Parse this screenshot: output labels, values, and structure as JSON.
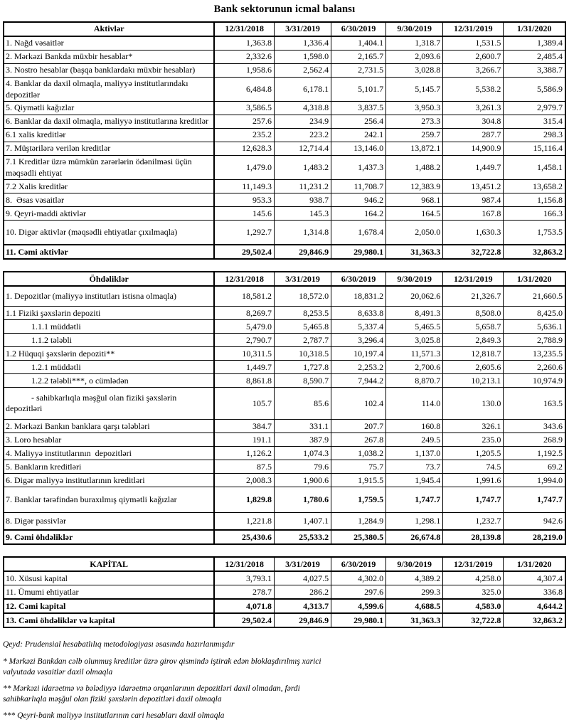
{
  "title": "Bank sektorunun icmal balansı",
  "columns": [
    "12/31/2018",
    "3/31/2019",
    "6/30/2019",
    "9/30/2019",
    "12/31/2019",
    "1/31/2020"
  ],
  "tables": [
    {
      "header": "Aktivlər",
      "rows": [
        {
          "label": "1. Nağd vəsaitlər",
          "values": [
            "1,363.8",
            "1,336.4",
            "1,404.1",
            "1,318.7",
            "1,531.5",
            "1,389.4"
          ]
        },
        {
          "label": "2. Mərkəzi Bankda müxbir hesablar*",
          "values": [
            "2,332.6",
            "1,598.0",
            "2,165.7",
            "2,093.6",
            "2,600.7",
            "2,485.4"
          ]
        },
        {
          "label": "3. Nostro hesablar (başqa banklardakı müxbir hesablar)",
          "values": [
            "1,958.6",
            "2,562.4",
            "2,731.5",
            "3,028.8",
            "3,266.7",
            "3,388.7"
          ]
        },
        {
          "label": "4. Banklar da daxil olmaqla, maliyyə institutlarındakı depozitlər",
          "values": [
            "6,484.8",
            "6,178.1",
            "5,101.7",
            "5,145.7",
            "5,538.2",
            "5,586.9"
          ]
        },
        {
          "label": "5. Qiymətli kağızlar",
          "values": [
            "3,586.5",
            "4,318.8",
            "3,837.5",
            "3,950.3",
            "3,261.3",
            "2,979.7"
          ]
        },
        {
          "label": "6. Banklar da daxil olmaqla, maliyyə institutlarına kreditlər",
          "values": [
            "257.6",
            "234.9",
            "256.4",
            "273.3",
            "304.8",
            "315.4"
          ]
        },
        {
          "label": "6.1 xalis kreditlər",
          "values": [
            "235.2",
            "223.2",
            "242.1",
            "259.7",
            "287.7",
            "298.3"
          ]
        },
        {
          "label": "7. Müştərilərə verilən kreditlər",
          "values": [
            "12,628.3",
            "12,714.4",
            "13,146.0",
            "13,872.1",
            "14,900.9",
            "15,116.4"
          ]
        },
        {
          "label": "7.1 Kreditlər üzrə mümkün zərərlərin ödənilməsi üçün məqsədli ehtiyat",
          "values": [
            "1,479.0",
            "1,483.2",
            "1,437.3",
            "1,488.2",
            "1,449.7",
            "1,458.1"
          ]
        },
        {
          "label": "7.2 Xalis kreditlər",
          "values": [
            "11,149.3",
            "11,231.2",
            "11,708.7",
            "12,383.9",
            "13,451.2",
            "13,658.2"
          ]
        },
        {
          "label": "8.  Əsas vəsaitlər",
          "values": [
            "953.3",
            "938.7",
            "946.2",
            "968.1",
            "987.4",
            "1,156.8"
          ]
        },
        {
          "label": "9. Qeyri-maddi aktivlər",
          "values": [
            "145.6",
            "145.3",
            "164.2",
            "164.5",
            "167.8",
            "166.3"
          ]
        },
        {
          "label": "10. Digər aktivlər (məqsədli ehtiyatlar çıxılmaqla)",
          "values": [
            "1,292.7",
            "1,314.8",
            "1,678.4",
            "2,050.0",
            "1,630.3",
            "1,753.5"
          ],
          "tall": 31
        },
        {
          "label": "11. Cəmi aktivlər",
          "values": [
            "29,502.4",
            "29,846.9",
            "29,980.1",
            "31,363.3",
            "32,722.8",
            "32,863.2"
          ],
          "bold": true,
          "total": true
        }
      ]
    },
    {
      "header": "Öhdəliklər",
      "rows": [
        {
          "label": "1. Depozitlər (maliyyə institutları istisna olmaqla)",
          "values": [
            "18,581.2",
            "18,572.0",
            "18,831.2",
            "20,062.6",
            "21,326.7",
            "21,660.5"
          ],
          "tall": 25
        },
        {
          "label": "1.1 Fiziki şəxslərin depoziti",
          "values": [
            "8,269.7",
            "8,253.5",
            "8,633.8",
            "8,491.3",
            "8,508.0",
            "8,425.0"
          ]
        },
        {
          "label": "1.1.1 müddətli",
          "indent": 1,
          "values": [
            "5,479.0",
            "5,465.8",
            "5,337.4",
            "5,465.5",
            "5,658.7",
            "5,636.1"
          ]
        },
        {
          "label": "1.1.2 tələbli",
          "indent": 1,
          "values": [
            "2,790.7",
            "2,787.7",
            "3,296.4",
            "3,025.8",
            "2,849.3",
            "2,788.9"
          ]
        },
        {
          "label": "1.2 Hüquqi şəxslərin depoziti**",
          "values": [
            "10,311.5",
            "10,318.5",
            "10,197.4",
            "11,571.3",
            "12,818.7",
            "13,235.5"
          ]
        },
        {
          "label": "1.2.1 müddətli",
          "indent": 1,
          "values": [
            "1,449.7",
            "1,727.8",
            "2,253.2",
            "2,700.6",
            "2,605.6",
            "2,260.6"
          ]
        },
        {
          "label": "1.2.2 tələbli***, o cümlədən",
          "indent": 1,
          "values": [
            "8,861.8",
            "8,590.7",
            "7,944.2",
            "8,870.7",
            "10,213.1",
            "10,974.9"
          ]
        },
        {
          "label": "- sahibkarlıqla məşğul olan fiziki şəxslərin depozitləri",
          "indent": 1,
          "values": [
            "105.7",
            "85.6",
            "102.4",
            "114.0",
            "130.0",
            "163.5"
          ],
          "tall": 42
        },
        {
          "label": "2. Mərkəzi Bankın banklara qarşı tələbləri",
          "values": [
            "384.7",
            "331.1",
            "207.7",
            "160.8",
            "326.1",
            "343.6"
          ]
        },
        {
          "label": "3. Loro hesablar",
          "values": [
            "191.1",
            "387.9",
            "267.8",
            "249.5",
            "235.0",
            "268.9"
          ]
        },
        {
          "label": "4. Maliyyə institutlarının  depozitləri",
          "values": [
            "1,126.2",
            "1,074.3",
            "1,038.2",
            "1,137.0",
            "1,205.5",
            "1,192.5"
          ]
        },
        {
          "label": "5. Bankların kreditləri",
          "values": [
            "87.5",
            "79.6",
            "75.7",
            "73.7",
            "74.5",
            "69.2"
          ]
        },
        {
          "label": "6. Digər maliyyə institutlarının kreditləri",
          "values": [
            "2,008.3",
            "1,900.6",
            "1,915.5",
            "1,945.4",
            "1,991.6",
            "1,994.0"
          ]
        },
        {
          "label": "7. Banklar tərəfindən buraxılmış qiymətli kağızlar",
          "values": [
            "1,829.8",
            "1,780.6",
            "1,759.5",
            "1,747.7",
            "1,747.7",
            "1,747.7"
          ],
          "bold_values": true,
          "tall": 33
        },
        {
          "label": "8. Digər passivlər",
          "values": [
            "1,221.8",
            "1,407.1",
            "1,284.9",
            "1,298.1",
            "1,232.7",
            "942.6"
          ],
          "tall": 21
        },
        {
          "label": "9. Cəmi öhdəliklər",
          "values": [
            "25,430.6",
            "25,533.2",
            "25,380.5",
            "26,674.8",
            "28,139.8",
            "28,219.0"
          ],
          "bold": true,
          "total": true
        }
      ]
    },
    {
      "header": "KAPİTAL",
      "rows": [
        {
          "label": "10. Xüsusi kapital",
          "values": [
            "3,793.1",
            "4,027.5",
            "4,302.0",
            "4,389.2",
            "4,258.0",
            "4,307.4"
          ]
        },
        {
          "label": "11. Ümumi ehtiyatlar",
          "values": [
            "278.7",
            "286.2",
            "297.6",
            "299.3",
            "325.0",
            "336.8"
          ]
        },
        {
          "label": "12. Cəmi kapital",
          "values": [
            "4,071.8",
            "4,313.7",
            "4,599.6",
            "4,688.5",
            "4,583.0",
            "4,644.2"
          ],
          "bold": true,
          "total": true
        },
        {
          "label": "13. Cəmi öhdəliklər və kapital",
          "values": [
            "29,502.4",
            "29,846.9",
            "29,980.1",
            "31,363.3",
            "32,722.8",
            "32,863.2"
          ],
          "bold": true,
          "total": true
        }
      ]
    }
  ],
  "footnotes": [
    "Qeyd: Prudensial hesabatlılıq metodologiyası əsasında hazırlanmışdır",
    "* Mərkəzi Bankdan cəlb olunmuş kreditlər üzrə girov qismində iştirak edən bloklaşdırılmış xarici valyutada vəsaitlər daxil olmaqla",
    "** Mərkəzi idarəetmə və bələdiyyə idarəetmə orqanlarının depozitləri daxil olmadan, fərdi sahibkarlıqla məşğul olan fiziki şəxslərin depozitləri daxil olmaqla",
    "*** Qeyri-bank maliyyə institutlarının cari hesabları daxil olmaqla"
  ]
}
